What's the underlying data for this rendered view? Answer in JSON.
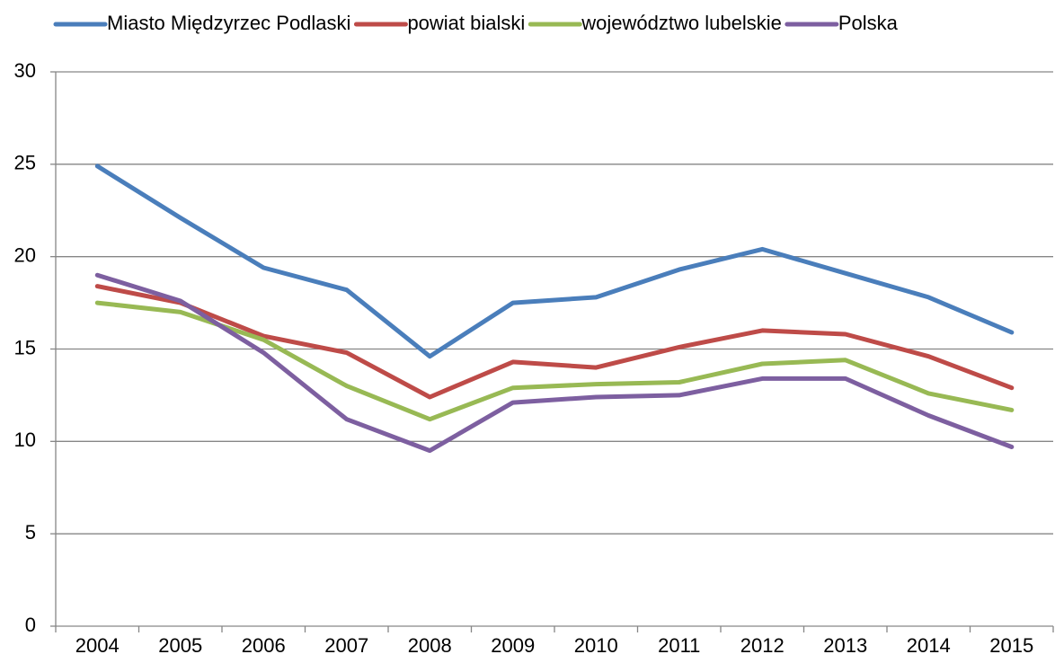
{
  "chart_data": {
    "type": "line",
    "categories": [
      "2004",
      "2005",
      "2006",
      "2007",
      "2008",
      "2009",
      "2010",
      "2011",
      "2012",
      "2013",
      "2014",
      "2015"
    ],
    "series": [
      {
        "name": "Miasto Międzyrzec Podlaski",
        "color": "#4a7ebb",
        "values": [
          24.9,
          22.1,
          19.4,
          18.2,
          14.6,
          17.5,
          17.8,
          19.3,
          20.4,
          19.1,
          17.8,
          15.9
        ]
      },
      {
        "name": "powiat bialski",
        "color": "#be4b48",
        "values": [
          18.4,
          17.5,
          15.7,
          14.8,
          12.4,
          14.3,
          14.0,
          15.1,
          16.0,
          15.8,
          14.6,
          12.9
        ]
      },
      {
        "name": "województwo lubelskie",
        "color": "#98b954",
        "values": [
          17.5,
          17.0,
          15.5,
          13.0,
          11.2,
          12.9,
          13.1,
          13.2,
          14.2,
          14.4,
          12.6,
          11.7
        ]
      },
      {
        "name": "Polska",
        "color": "#7d5fa0",
        "values": [
          19.0,
          17.6,
          14.8,
          11.2,
          9.5,
          12.1,
          12.4,
          12.5,
          13.4,
          13.4,
          11.4,
          9.7
        ]
      }
    ],
    "ylim": [
      0,
      30
    ],
    "yticks": [
      0,
      5,
      10,
      15,
      20,
      25,
      30
    ],
    "grid": true,
    "legend": "top"
  }
}
